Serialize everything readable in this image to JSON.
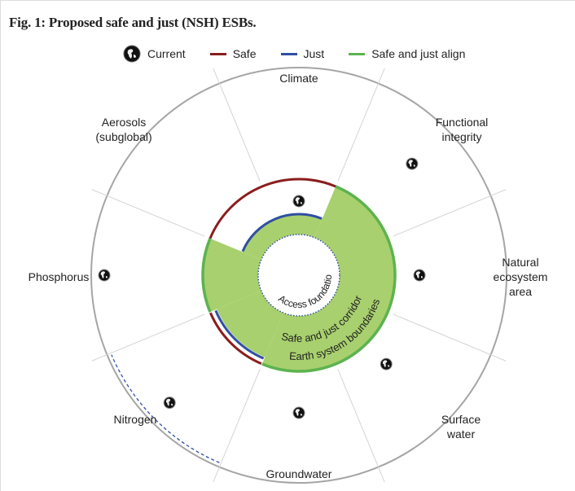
{
  "title": "Fig. 1: Proposed safe and just (NSH) ESBs.",
  "legend": [
    {
      "label": "Current",
      "icon": "globe-icon"
    },
    {
      "label": "Safe",
      "color": "#8b1d1d"
    },
    {
      "label": "Just",
      "color": "#2f4fa3"
    },
    {
      "label": "Safe and just align",
      "color": "#5cb34f"
    }
  ],
  "colors": {
    "fill": "#a8d06e",
    "align": "#5cb34f",
    "safe": "#8b1d1d",
    "just": "#2f4fa3",
    "ring": "#a5a5a5"
  },
  "sectors": [
    {
      "label": "Climate"
    },
    {
      "label": "Functional\nintegrity"
    },
    {
      "label": "Natural\necosystem\narea"
    },
    {
      "label": "Surface\nwater"
    },
    {
      "label": "Groundwater"
    },
    {
      "label": "Nitrogen"
    },
    {
      "label": "Phosphorus"
    },
    {
      "label": "Aerosols\n(subglobal)"
    }
  ],
  "rings": {
    "access": "Access foundation",
    "corridor": "Safe and just corridor",
    "boundaries": "Earth system boundaries"
  }
}
